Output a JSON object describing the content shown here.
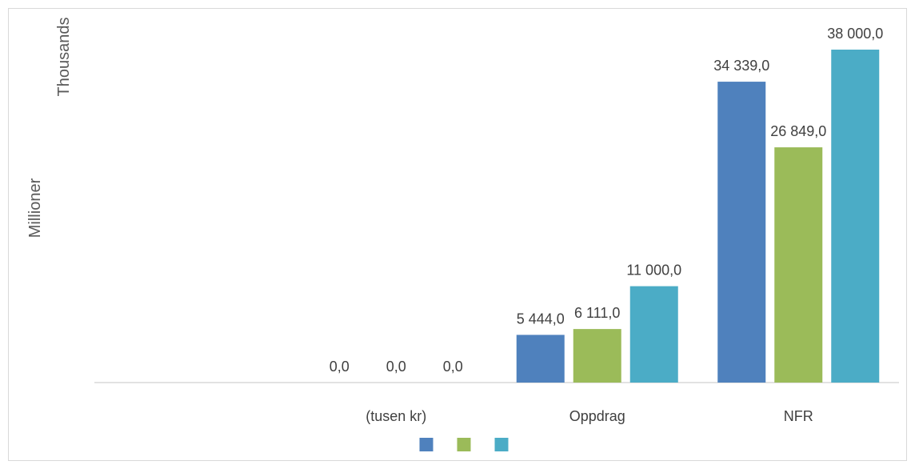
{
  "chart_data": {
    "type": "bar",
    "title": "",
    "xlabel": "",
    "ylabel": "Millioner",
    "unit_label": "Thousands",
    "categories": [
      "",
      "(tusen kr)",
      "Oppdrag",
      "NFR"
    ],
    "series": [
      {
        "color": "#4f81bd",
        "values": [
          null,
          0,
          5444,
          34339
        ]
      },
      {
        "color": "#9bbb59",
        "values": [
          null,
          0,
          6111,
          26849
        ]
      },
      {
        "color": "#4bacc6",
        "values": [
          null,
          0,
          11000,
          38000
        ]
      }
    ],
    "value_labels": [
      [
        "",
        "0,0",
        "5 444,0",
        "34 339,0"
      ],
      [
        "",
        "0,0",
        "6 111,0",
        "26 849,0"
      ],
      [
        "",
        "0,0",
        "11 000,0",
        "38 000,0"
      ]
    ],
    "ylim": [
      0,
      38000
    ],
    "grid": false,
    "legend": "bottom",
    "legend_entries": [
      "",
      "",
      ""
    ]
  }
}
